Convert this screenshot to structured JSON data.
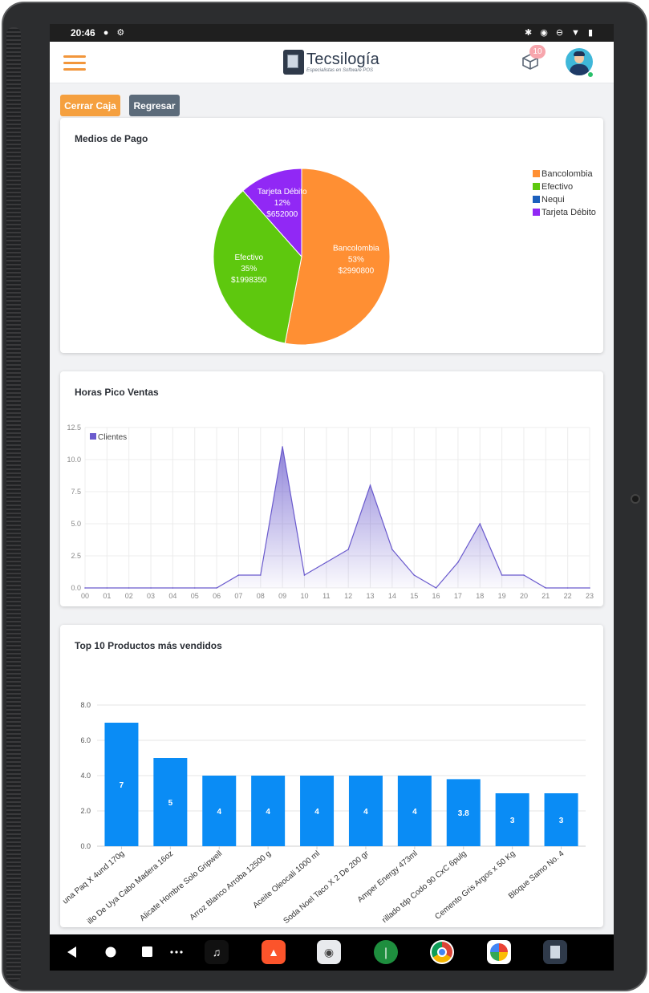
{
  "status": {
    "time": "20:46"
  },
  "header": {
    "logo_name": "Tecsilogía",
    "logo_tagline": "Especialistas en Software POS",
    "notification_count": "10"
  },
  "actions": {
    "close_register": "Cerrar Caja",
    "back": "Regresar"
  },
  "cards": {
    "payments_title": "Medios de Pago",
    "peak_title": "Horas Pico Ventas",
    "top_title": "Top 10 Productos más vendidos"
  },
  "colors": {
    "accent": "#f5a03f",
    "bancolombia": "#ff8f33",
    "efectivo": "#5ec80e",
    "nequi": "#1c5fbd",
    "tarjeta": "#9128f5",
    "line": "#6a5acd",
    "bar": "#0a8cf5"
  },
  "chart_data": [
    {
      "type": "pie",
      "title": "Medios de Pago",
      "labels": [
        "Bancolombia",
        "Efectivo",
        "Nequi",
        "Tarjeta Débito"
      ],
      "values": [
        2990800,
        1998350,
        0,
        652000
      ],
      "percent_labels": [
        "53%",
        "35%",
        "",
        "12%"
      ],
      "value_labels": [
        "$2990800",
        "$1998350",
        "",
        "$652000"
      ],
      "legend": "right"
    },
    {
      "type": "area",
      "title": "Horas Pico Ventas",
      "series": [
        {
          "name": "Clientes",
          "values": [
            0,
            0,
            0,
            0,
            0,
            0,
            0,
            1,
            1,
            11,
            1,
            2,
            3,
            8,
            3,
            1,
            0,
            2,
            5,
            1,
            1,
            0,
            0,
            0
          ]
        }
      ],
      "categories": [
        "00",
        "01",
        "02",
        "03",
        "04",
        "05",
        "06",
        "07",
        "08",
        "09",
        "10",
        "11",
        "12",
        "13",
        "14",
        "15",
        "16",
        "17",
        "18",
        "19",
        "20",
        "21",
        "22",
        "23"
      ],
      "ylim": [
        0,
        12.5
      ],
      "yticks": [
        "0.0",
        "2.5",
        "5.0",
        "7.5",
        "10.0",
        "12.5"
      ],
      "grid": true,
      "legend": "top-left"
    },
    {
      "type": "bar",
      "title": "Top 10 Productos más vendidos",
      "categories": [
        "una Paq X 4und 170g",
        "illo De Uya Cabo Madera 16oz",
        "Alicate Hombre Solo Gripwell",
        "Arroz Blanco Arroba 12500 g",
        "Aceite Oleocali 1000 ml",
        "Soda Noel Taco X 2 De 200 gr",
        "Amper Energy 473ml",
        "rillado tdp Codo 90 CxC 6pulg",
        "Cemento Gris Argos x 50 Kg",
        "Bloque Samo No. 4"
      ],
      "values": [
        7,
        5,
        4,
        4,
        4,
        4,
        4,
        3.8,
        3,
        3
      ],
      "value_labels": [
        "7",
        "5",
        "4",
        "4",
        "4",
        "4",
        "4",
        "3.8",
        "3",
        "3"
      ],
      "ylim": [
        0,
        8
      ],
      "yticks": [
        "0.0",
        "2.0",
        "4.0",
        "6.0",
        "8.0"
      ],
      "grid": true
    }
  ]
}
